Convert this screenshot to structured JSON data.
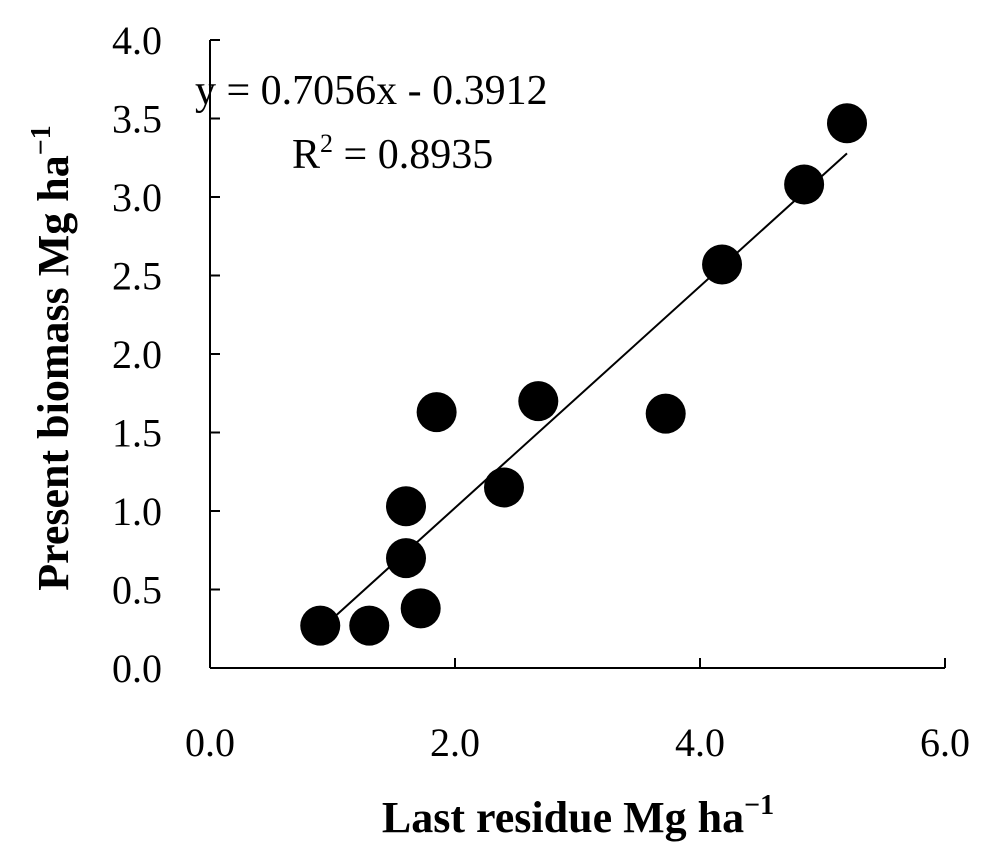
{
  "chart_data": {
    "type": "scatter",
    "xlabel": "Last residue Mg ha",
    "xlabel_sup": "−1",
    "ylabel": "Present biomass Mg ha",
    "ylabel_sup": "−1",
    "xlim": [
      0,
      6
    ],
    "ylim": [
      0,
      4
    ],
    "x_ticks": [
      0,
      2,
      4,
      6
    ],
    "x_tick_labels": [
      "0.0",
      "2.0",
      "4.0",
      "6.0"
    ],
    "y_ticks": [
      0,
      0.5,
      1,
      1.5,
      2,
      2.5,
      3,
      3.5,
      4
    ],
    "y_tick_labels": [
      "0.0",
      "0.5",
      "1.0",
      "1.5",
      "2.0",
      "2.5",
      "3.0",
      "3.5",
      "4.0"
    ],
    "grid": false,
    "points": [
      {
        "x": 0.9,
        "y": 0.27
      },
      {
        "x": 1.3,
        "y": 0.27
      },
      {
        "x": 1.72,
        "y": 0.38
      },
      {
        "x": 1.6,
        "y": 0.7
      },
      {
        "x": 1.6,
        "y": 1.03
      },
      {
        "x": 1.85,
        "y": 1.63
      },
      {
        "x": 2.4,
        "y": 1.15
      },
      {
        "x": 2.68,
        "y": 1.7
      },
      {
        "x": 3.72,
        "y": 1.62
      },
      {
        "x": 4.18,
        "y": 2.57
      },
      {
        "x": 4.85,
        "y": 3.08
      },
      {
        "x": 5.2,
        "y": 3.47
      }
    ],
    "trendline": {
      "slope": 0.7056,
      "intercept": -0.3912,
      "x_range": [
        0.9,
        5.2
      ]
    },
    "equation_text": "y = 0.7056x  - 0.3912",
    "r2_label": "R",
    "r2_sup": "2",
    "r2_value": " = 0.8935",
    "marker_color": "#000000",
    "line_color": "#000000"
  }
}
